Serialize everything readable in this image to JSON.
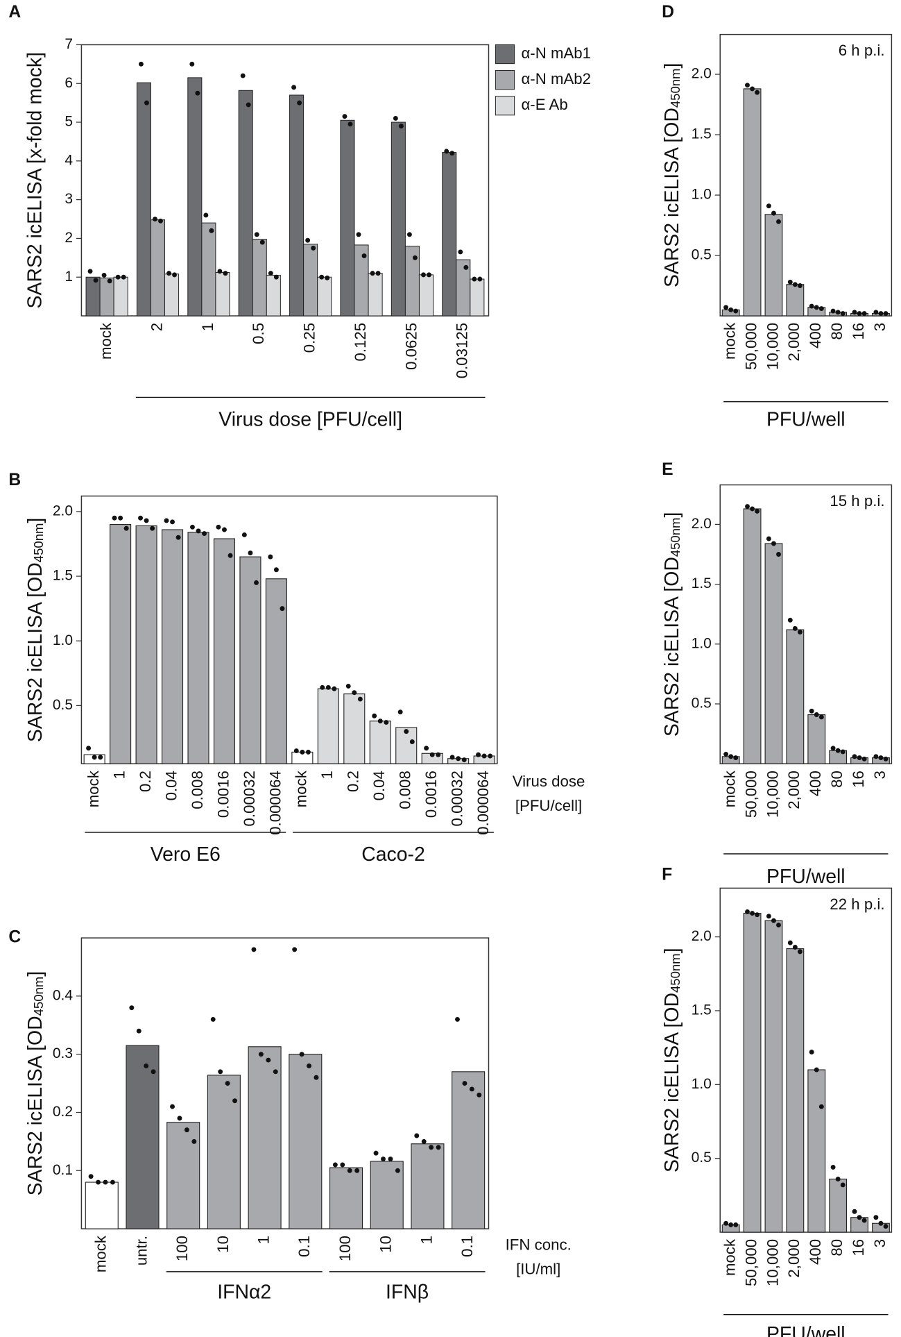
{
  "chart_data": [
    {
      "type": "bar",
      "panel": "A",
      "y_label": "SARS2 icELISA [x-fold mock]",
      "categories": [
        "mock",
        "2",
        "1",
        "0.5",
        "0.25",
        "0.125",
        "0.0625",
        "0.03125"
      ],
      "series": [
        {
          "name": "α-N mAb1",
          "color": "#6d6e71",
          "values": [
            1.0,
            6.02,
            6.15,
            5.82,
            5.7,
            5.05,
            5.0,
            4.22
          ],
          "points": [
            [
              1.15,
              0.92
            ],
            [
              6.5,
              5.5
            ],
            [
              6.5,
              5.75
            ],
            [
              6.2,
              5.45
            ],
            [
              5.9,
              5.5
            ],
            [
              5.15,
              4.95
            ],
            [
              5.1,
              4.9
            ],
            [
              4.25,
              4.2
            ]
          ]
        },
        {
          "name": "α-N mAb2",
          "color": "#a7a9ac",
          "values": [
            0.98,
            2.48,
            2.4,
            1.98,
            1.85,
            1.83,
            1.8,
            1.45
          ],
          "points": [
            [
              1.05,
              0.9
            ],
            [
              2.5,
              2.45
            ],
            [
              2.6,
              2.2
            ],
            [
              2.1,
              1.9
            ],
            [
              1.95,
              1.75
            ],
            [
              2.1,
              1.55
            ],
            [
              2.1,
              1.5
            ],
            [
              1.65,
              1.25
            ]
          ]
        },
        {
          "name": "α-E Ab",
          "color": "#d9dadb",
          "values": [
            1.0,
            1.08,
            1.12,
            1.05,
            1.0,
            1.1,
            1.06,
            0.95
          ],
          "points": [
            [
              1.0,
              1.0
            ],
            [
              1.1,
              1.06
            ],
            [
              1.15,
              1.1
            ],
            [
              1.1,
              1.0
            ],
            [
              1.0,
              0.98
            ],
            [
              1.1,
              1.1
            ],
            [
              1.06,
              1.06
            ],
            [
              0.95,
              0.95
            ]
          ]
        }
      ],
      "group_labels": [
        "Virus dose [PFU/cell]"
      ],
      "ylim": [
        0,
        7
      ],
      "yticks": [
        1,
        2,
        3,
        4,
        5,
        6,
        7
      ]
    },
    {
      "type": "bar",
      "panel": "B",
      "y_label": [
        "SARS2 icELISA [OD",
        "450nm",
        "]"
      ],
      "categories": [
        "mock",
        "1",
        "0.2",
        "0.04",
        "0.008",
        "0.0016",
        "0.00032",
        "0.000064",
        "mock",
        "1",
        "0.2",
        "0.04",
        "0.008",
        "0.0016",
        "0.00032",
        "0.000064"
      ],
      "values": [
        0.12,
        1.9,
        1.89,
        1.86,
        1.84,
        1.79,
        1.65,
        1.48,
        0.14,
        0.63,
        0.59,
        0.38,
        0.33,
        0.13,
        0.09,
        0.11
      ],
      "colors": [
        "#ffffff",
        "#a7a9ac",
        "#a7a9ac",
        "#a7a9ac",
        "#a7a9ac",
        "#a7a9ac",
        "#a7a9ac",
        "#a7a9ac",
        "#ffffff",
        "#d9dadb",
        "#d9dadb",
        "#d9dadb",
        "#d9dadb",
        "#d9dadb",
        "#d9dadb",
        "#d9dadb"
      ],
      "points": [
        [
          0.17,
          0.1,
          0.1
        ],
        [
          1.95,
          1.95,
          1.87
        ],
        [
          1.95,
          1.93,
          1.87
        ],
        [
          1.93,
          1.92,
          1.8
        ],
        [
          1.88,
          1.85,
          1.83
        ],
        [
          1.88,
          1.86,
          1.66
        ],
        [
          1.82,
          1.68,
          1.45
        ],
        [
          1.65,
          1.55,
          1.25
        ],
        [
          0.15,
          0.14,
          0.14
        ],
        [
          0.64,
          0.64,
          0.63
        ],
        [
          0.65,
          0.6,
          0.55
        ],
        [
          0.42,
          0.38,
          0.37
        ],
        [
          0.45,
          0.3,
          0.22
        ],
        [
          0.17,
          0.12,
          0.12
        ],
        [
          0.1,
          0.09,
          0.08
        ],
        [
          0.12,
          0.11,
          0.11
        ]
      ],
      "group_labels": [
        "Vero E6",
        "Caco-2"
      ],
      "side_label": [
        "Virus dose",
        "[PFU/cell]"
      ],
      "ylim": [
        0.05,
        2.12
      ],
      "yticks": [
        0.5,
        {
          "value": 1,
          "label": "1.0"
        },
        1.5,
        {
          "value": 2,
          "label": "2.0"
        }
      ]
    },
    {
      "type": "bar",
      "panel": "C",
      "y_label": [
        "SARS2 icELISA [OD",
        "450nm",
        "]"
      ],
      "categories": [
        "mock",
        "untr.",
        "100",
        "10",
        "1",
        "0.1",
        "100",
        "10",
        "1",
        "0.1"
      ],
      "values": [
        0.08,
        0.315,
        0.183,
        0.264,
        0.313,
        0.3,
        0.105,
        0.116,
        0.146,
        0.27
      ],
      "colors": [
        "#ffffff",
        "#6d6e71",
        "#a7a9ac",
        "#a7a9ac",
        "#a7a9ac",
        "#a7a9ac",
        "#a7a9ac",
        "#a7a9ac",
        "#a7a9ac",
        "#a7a9ac"
      ],
      "points": [
        [
          0.09,
          0.08,
          0.08,
          0.08
        ],
        [
          0.38,
          0.34,
          0.28,
          0.27
        ],
        [
          0.21,
          0.19,
          0.17,
          0.15
        ],
        [
          0.36,
          0.27,
          0.25,
          0.22
        ],
        [
          0.48,
          0.3,
          0.29,
          0.27
        ],
        [
          0.48,
          0.3,
          0.28,
          0.26
        ],
        [
          0.11,
          0.11,
          0.1,
          0.1
        ],
        [
          0.13,
          0.12,
          0.12,
          0.1
        ],
        [
          0.16,
          0.15,
          0.14,
          0.14
        ],
        [
          0.36,
          0.25,
          0.24,
          0.23
        ]
      ],
      "group_labels": [
        "IFNα2",
        "IFNβ"
      ],
      "side_label": [
        "IFN conc.",
        "[IU/ml]"
      ],
      "ylim": [
        0,
        0.5
      ],
      "yticks": [
        0.1,
        0.2,
        0.3,
        0.4
      ]
    },
    {
      "type": "bar",
      "panel": "D",
      "y_label": [
        "SARS2 icELISA [OD",
        "450nm",
        "]"
      ],
      "annotation": "6 h p.i.",
      "categories": [
        "mock",
        "50,000",
        "10,000",
        "2,000",
        "400",
        "80",
        "16",
        "3"
      ],
      "values": [
        0.05,
        1.88,
        0.84,
        0.26,
        0.07,
        0.03,
        0.02,
        0.02
      ],
      "colors": [
        "#a7a9ac",
        "#a7a9ac",
        "#a7a9ac",
        "#a7a9ac",
        "#a7a9ac",
        "#a7a9ac",
        "#a7a9ac",
        "#a7a9ac"
      ],
      "points": [
        [
          0.07,
          0.05,
          0.04
        ],
        [
          1.91,
          1.88,
          1.85
        ],
        [
          0.91,
          0.85,
          0.78
        ],
        [
          0.28,
          0.26,
          0.25
        ],
        [
          0.08,
          0.07,
          0.06
        ],
        [
          0.04,
          0.03,
          0.02
        ],
        [
          0.03,
          0.02,
          0.02
        ],
        [
          0.03,
          0.02,
          0.02
        ]
      ],
      "group_labels": [
        "PFU/well"
      ],
      "ylim": [
        0,
        2.33
      ],
      "yticks": [
        0.5,
        {
          "value": 1,
          "label": "1.0"
        },
        1.5,
        {
          "value": 2,
          "label": "2.0"
        }
      ]
    },
    {
      "type": "bar",
      "panel": "E",
      "y_label": [
        "SARS2 icELISA [OD",
        "450nm",
        "]"
      ],
      "annotation": "15 h p.i.",
      "categories": [
        "mock",
        "50,000",
        "10,000",
        "2,000",
        "400",
        "80",
        "16",
        "3"
      ],
      "values": [
        0.06,
        2.13,
        1.84,
        1.12,
        0.41,
        0.11,
        0.05,
        0.05
      ],
      "colors": [
        "#a7a9ac",
        "#a7a9ac",
        "#a7a9ac",
        "#a7a9ac",
        "#a7a9ac",
        "#a7a9ac",
        "#a7a9ac",
        "#a7a9ac"
      ],
      "points": [
        [
          0.08,
          0.06,
          0.05
        ],
        [
          2.15,
          2.13,
          2.11
        ],
        [
          1.88,
          1.84,
          1.75
        ],
        [
          1.2,
          1.13,
          1.1
        ],
        [
          0.44,
          0.41,
          0.39
        ],
        [
          0.13,
          0.11,
          0.1
        ],
        [
          0.06,
          0.05,
          0.04
        ],
        [
          0.06,
          0.05,
          0.04
        ]
      ],
      "group_labels": [
        "PFU/well"
      ],
      "ylim": [
        0,
        2.33
      ],
      "yticks": [
        0.5,
        {
          "value": 1,
          "label": "1.0"
        },
        1.5,
        {
          "value": 2,
          "label": "2.0"
        }
      ]
    },
    {
      "type": "bar",
      "panel": "F",
      "y_label": [
        "SARS2 icELISA [OD",
        "450nm",
        "]"
      ],
      "annotation": "22 h p.i.",
      "categories": [
        "mock",
        "50,000",
        "10,000",
        "2,000",
        "400",
        "80",
        "16",
        "3"
      ],
      "values": [
        0.05,
        2.16,
        2.11,
        1.92,
        1.1,
        0.36,
        0.1,
        0.06
      ],
      "colors": [
        "#a7a9ac",
        "#a7a9ac",
        "#a7a9ac",
        "#a7a9ac",
        "#a7a9ac",
        "#a7a9ac",
        "#a7a9ac",
        "#a7a9ac"
      ],
      "points": [
        [
          0.06,
          0.05,
          0.05
        ],
        [
          2.17,
          2.16,
          2.15
        ],
        [
          2.14,
          2.11,
          2.08
        ],
        [
          1.96,
          1.93,
          1.9
        ],
        [
          1.22,
          1.1,
          0.85
        ],
        [
          0.44,
          0.36,
          0.32
        ],
        [
          0.14,
          0.1,
          0.08
        ],
        [
          0.1,
          0.06,
          0.04
        ]
      ],
      "group_labels": [
        "PFU/well"
      ],
      "ylim": [
        0,
        2.33
      ],
      "yticks": [
        0.5,
        {
          "value": 1,
          "label": "1.0"
        },
        1.5,
        {
          "value": 2,
          "label": "2.0"
        }
      ]
    }
  ]
}
